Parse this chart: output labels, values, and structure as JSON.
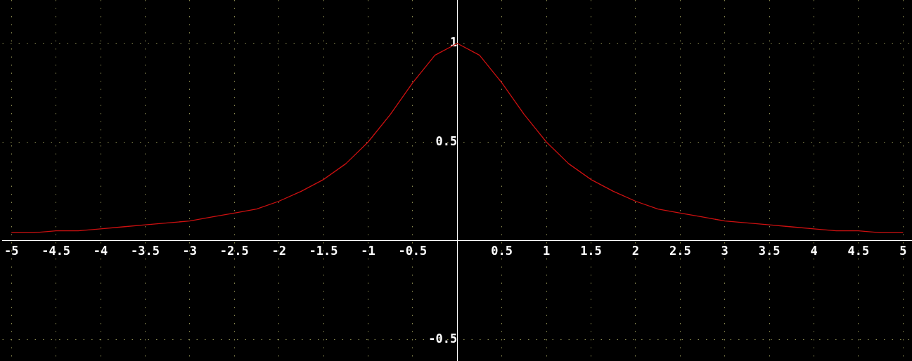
{
  "chart_data": {
    "type": "line",
    "x": [
      -5,
      -4.75,
      -4.5,
      -4.25,
      -4,
      -3.75,
      -3.5,
      -3.25,
      -3,
      -2.75,
      -2.5,
      -2.25,
      -2,
      -1.75,
      -1.5,
      -1.25,
      -1,
      -0.75,
      -0.5,
      -0.25,
      0,
      0.25,
      0.5,
      0.75,
      1,
      1.25,
      1.5,
      1.75,
      2,
      2.25,
      2.5,
      2.75,
      3,
      3.25,
      3.5,
      3.75,
      4,
      4.25,
      4.5,
      4.75,
      5
    ],
    "series": [
      {
        "color": "#cc1010",
        "values": [
          0.04,
          0.04,
          0.05,
          0.05,
          0.06,
          0.07,
          0.08,
          0.09,
          0.1,
          0.12,
          0.14,
          0.16,
          0.2,
          0.25,
          0.31,
          0.39,
          0.5,
          0.64,
          0.8,
          0.94,
          1,
          0.94,
          0.8,
          0.64,
          0.5,
          0.39,
          0.31,
          0.25,
          0.2,
          0.16,
          0.14,
          0.12,
          0.1,
          0.09,
          0.08,
          0.07,
          0.06,
          0.05,
          0.05,
          0.04,
          0.04
        ]
      }
    ],
    "xlim": [
      -5.1,
      5.1
    ],
    "ylim": [
      -0.61,
      1.22
    ],
    "xticks": [
      -5,
      -4.5,
      -4,
      -3.5,
      -3,
      -2.5,
      -2,
      -1.5,
      -1,
      -0.5,
      0.5,
      1,
      1.5,
      2,
      2.5,
      3,
      3.5,
      4,
      4.5,
      5
    ],
    "yticks": [
      -0.5,
      0.5,
      1
    ],
    "grid": true,
    "legend": false,
    "marker": "none",
    "line_style": "solid"
  }
}
